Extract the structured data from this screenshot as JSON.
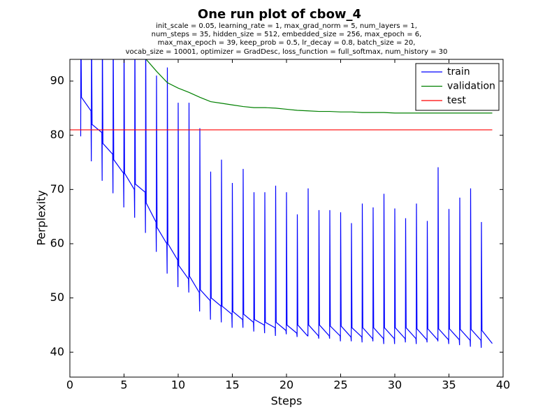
{
  "chart_data": {
    "type": "line",
    "title": "One run plot of cbow_4",
    "subtitle": [
      "init_scale = 0.05, learning_rate = 1, max_grad_norm = 5, num_layers = 1,",
      "num_steps = 35, hidden_size = 512, embedded_size = 256, max_epoch = 6,",
      "max_max_epoch = 39, keep_prob = 0.5, lr_decay = 0.8, batch_size = 20,",
      "vocab_size = 10001, optimizer = GradDesc, loss_function = full_softmax, num_history = 30"
    ],
    "x_label": "Steps",
    "y_label": "Perplexity",
    "xlim": [
      0,
      40
    ],
    "ylim": [
      35.4,
      94
    ],
    "xticks": [
      0,
      5,
      10,
      15,
      20,
      25,
      30,
      35,
      40
    ],
    "yticks": [
      40,
      50,
      60,
      70,
      80,
      90
    ],
    "grid": false,
    "legend": "upper right",
    "series": [
      {
        "name": "train",
        "color": "#0000ff",
        "x": [
          1,
          1.02,
          1.07,
          1.95,
          1.98,
          2,
          2.05,
          2.95,
          2.98,
          3,
          3.05,
          3.95,
          3.98,
          4,
          4.05,
          4.95,
          4.98,
          5,
          5.05,
          5.95,
          5.98,
          6,
          6.05,
          6.95,
          6.98,
          7,
          7.05,
          7.95,
          7.98,
          8,
          8.05,
          8.95,
          8.98,
          9,
          9.05,
          9.95,
          9.98,
          10,
          10.05,
          10.95,
          10.98,
          11,
          11.05,
          11.95,
          11.98,
          12,
          12.05,
          12.95,
          12.98,
          13,
          13.05,
          13.95,
          13.98,
          14,
          14.05,
          14.95,
          14.98,
          15,
          15.05,
          15.95,
          15.98,
          16,
          16.05,
          16.95,
          16.98,
          17,
          17.05,
          17.95,
          17.98,
          18,
          18.05,
          18.95,
          18.98,
          19,
          19.05,
          19.95,
          19.98,
          20,
          20.05,
          20.95,
          20.98,
          21,
          21.05,
          21.95,
          21.98,
          22,
          22.05,
          22.95,
          22.98,
          23,
          23.05,
          23.95,
          23.98,
          24,
          24.05,
          24.95,
          24.98,
          25,
          25.05,
          25.95,
          25.98,
          26,
          26.05,
          26.95,
          26.98,
          27,
          27.05,
          27.95,
          27.98,
          28,
          28.05,
          28.95,
          28.98,
          29,
          29.05,
          29.95,
          29.98,
          30,
          30.05,
          30.95,
          30.98,
          31,
          31.05,
          31.95,
          31.98,
          32,
          32.05,
          32.95,
          32.98,
          33,
          33.05,
          33.95,
          33.98,
          34,
          34.05,
          34.95,
          34.98,
          35,
          35.05,
          35.95,
          35.98,
          36,
          36.05,
          36.95,
          36.98,
          37,
          37.05,
          37.95,
          37.98,
          38,
          38.05,
          39
        ],
        "values": [
          79.8,
          100,
          87,
          84.5,
          75.2,
          100,
          82,
          80.5,
          71.6,
          100,
          78.5,
          76.5,
          69.3,
          100,
          75.5,
          73,
          66.7,
          100,
          73,
          70,
          64.8,
          100,
          71,
          69.5,
          62,
          100,
          67.5,
          64,
          58.5,
          91,
          63,
          60,
          54.5,
          92.5,
          60,
          57,
          52,
          86,
          56,
          53.5,
          51,
          86,
          54,
          51,
          47.5,
          81.3,
          51.5,
          49.5,
          46,
          73.3,
          50,
          48.5,
          45.5,
          75.5,
          48.5,
          47,
          44.5,
          71.2,
          47.5,
          46,
          44.5,
          73.8,
          47,
          45.5,
          43.8,
          69.5,
          46,
          45,
          43.5,
          69.5,
          45.5,
          44.5,
          43,
          70.7,
          45.5,
          44,
          43.3,
          69.5,
          45,
          43.5,
          42.8,
          65.4,
          45,
          43,
          43,
          70.2,
          45,
          43,
          42.5,
          66.2,
          45,
          43,
          42.5,
          66.2,
          44.8,
          43,
          42,
          65.8,
          44.8,
          42.8,
          42,
          63.8,
          44.5,
          42.8,
          41.8,
          67.4,
          44.5,
          42.5,
          42,
          66.7,
          44.5,
          42.5,
          41.5,
          69.2,
          44.5,
          42.5,
          41.5,
          66.5,
          44.5,
          42.5,
          41.8,
          64.7,
          44.5,
          42.5,
          41.5,
          67.4,
          44.3,
          42.3,
          41.8,
          64.2,
          44.3,
          42.3,
          42,
          74.1,
          44.3,
          42.3,
          41.5,
          66.4,
          44.3,
          42.3,
          41.3,
          68.5,
          44.2,
          42.2,
          41,
          70.2,
          44.2,
          42.2,
          40.8,
          64,
          44,
          41.6
        ]
      },
      {
        "name": "validation",
        "color": "#008000",
        "x": [
          6,
          7,
          8,
          9,
          10,
          11,
          12,
          13,
          14,
          15,
          16,
          17,
          18,
          19,
          20,
          21,
          22,
          23,
          24,
          25,
          26,
          27,
          28,
          29,
          30,
          31,
          32,
          33,
          34,
          35,
          36,
          37,
          38,
          39
        ],
        "values": [
          97,
          94.1,
          91.8,
          89.7,
          88.7,
          87.9,
          87,
          86.2,
          85.9,
          85.6,
          85.3,
          85.1,
          85.1,
          85,
          84.8,
          84.6,
          84.5,
          84.4,
          84.4,
          84.3,
          84.3,
          84.2,
          84.2,
          84.2,
          84.1,
          84.1,
          84.1,
          84.1,
          84.1,
          84.1,
          84.1,
          84.1,
          84.1,
          84.1
        ]
      },
      {
        "name": "test",
        "color": "#ff0000",
        "x": [
          0,
          39
        ],
        "values": [
          81,
          81
        ]
      }
    ]
  }
}
